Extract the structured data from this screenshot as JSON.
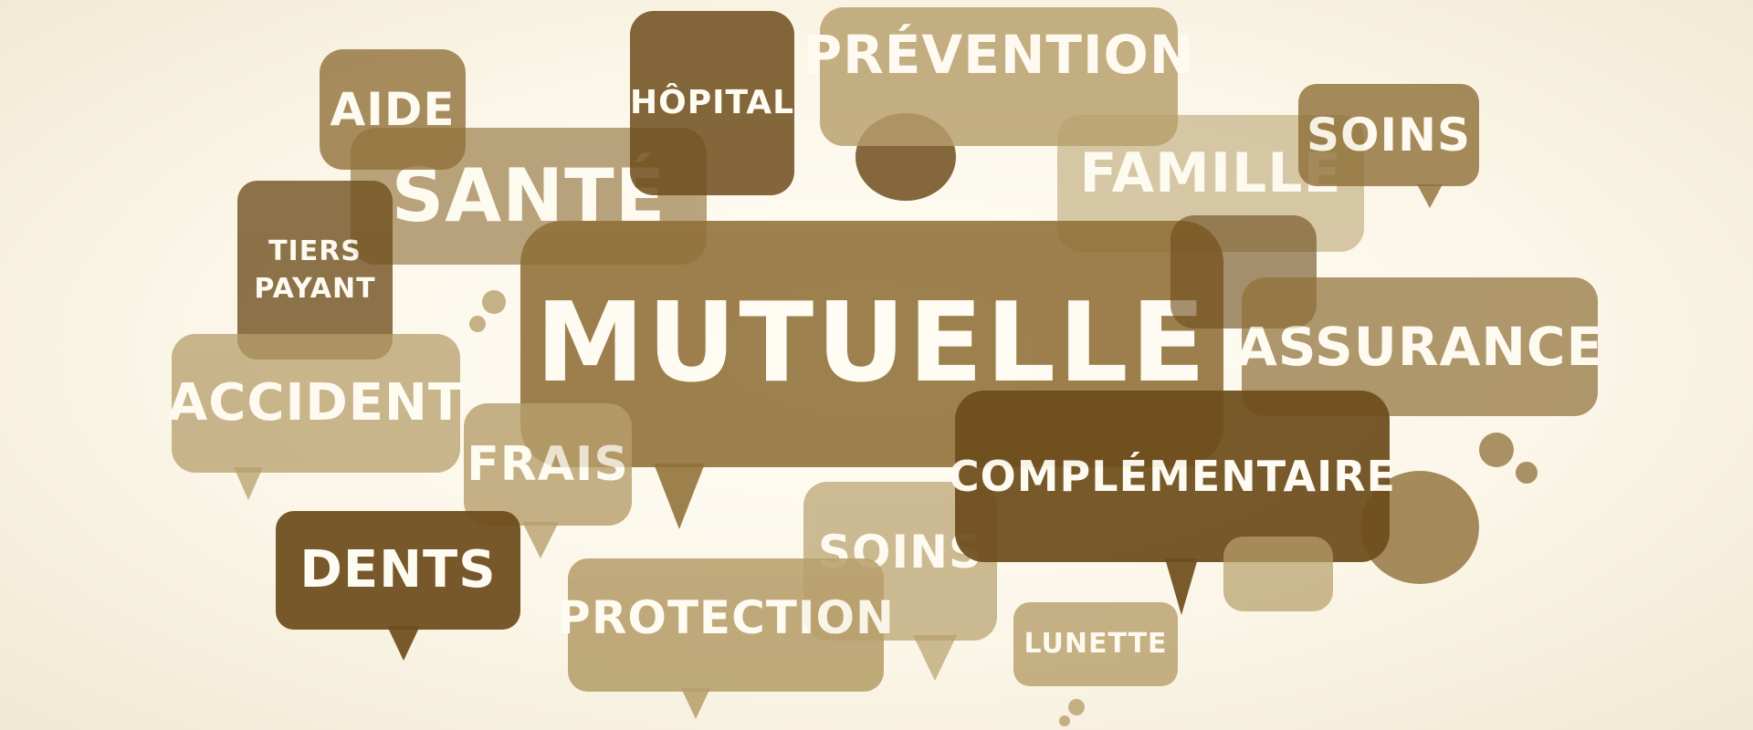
{
  "colors": {
    "dark": "#6e4d1c",
    "medium": "#8f6f37",
    "light": "#b79f6b",
    "pale": "#d2c094",
    "text": "#fffcf3"
  },
  "words": {
    "mutuelle": "MUTUELLE",
    "sante": "SANTÉ",
    "prevention": "PRÉVENTION",
    "hopital": "HÔPITAL",
    "aide": "AIDE",
    "soins_top": "SOINS",
    "famille": "FAMILLE",
    "tiers_payant_1": "TIERS",
    "tiers_payant_2": "PAYANT",
    "assurance": "ASSURANCE",
    "accident": "ACCIDENT",
    "frais": "FRAIS",
    "complementaire": "COMPLÉMENTAIRE",
    "dents": "DENTS",
    "soins_bottom": "SOINS",
    "protection": "PROTECTION",
    "lunette": "LUNETTE"
  }
}
